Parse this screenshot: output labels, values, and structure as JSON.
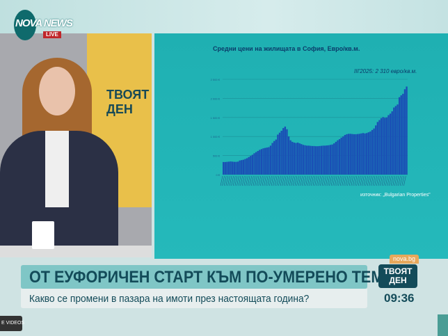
{
  "broadcast": {
    "channel_logo": "NOVA NEWS",
    "live_badge": "LIVE",
    "studio_brand": "ТВОЯТ ДЕН",
    "mug_logo": "NOVA NEWS"
  },
  "ticker": {
    "headline": "ОТ ЕУФОРИЧЕН СТАРТ КЪМ ПО-УМЕРЕНО ТЕМПО",
    "subheadline": "Какво се промени в пазара на имоти през настоящата година?",
    "site": "nova.bg",
    "show_logo": "ТВОЯТ ДЕН",
    "time": "09:36",
    "more_videos": "E VIDEOS"
  },
  "colors": {
    "panel": "#22b4b6",
    "bars": "#1a4fb5",
    "headline_text": "#134b59",
    "live": "#c0262a"
  },
  "chart_data": {
    "type": "bar",
    "title": "Средни цени на жилищата в София, Евро/кв.м.",
    "annotation": "III'2025: 2 310 евро/кв.м.",
    "source": "източник: „Bulgarian Properties\"",
    "yticks": [
      "0 €",
      "500 €",
      "1 000 €",
      "1 500 €",
      "2 000 €",
      "2 500 €"
    ],
    "ylim": [
      0,
      2500
    ],
    "grid": true,
    "values": [
      330,
      330,
      335,
      340,
      345,
      340,
      335,
      335,
      340,
      370,
      380,
      390,
      410,
      430,
      460,
      490,
      520,
      560,
      590,
      620,
      650,
      670,
      690,
      700,
      710,
      720,
      760,
      830,
      880,
      920,
      1050,
      1100,
      1150,
      1220,
      1260,
      1190,
      1000,
      900,
      860,
      840,
      830,
      840,
      820,
      800,
      780,
      770,
      760,
      760,
      755,
      750,
      750,
      745,
      745,
      750,
      755,
      760,
      760,
      765,
      770,
      780,
      790,
      820,
      860,
      900,
      930,
      970,
      1000,
      1040,
      1060,
      1070,
      1070,
      1065,
      1060,
      1060,
      1065,
      1070,
      1080,
      1090,
      1080,
      1090,
      1110,
      1130,
      1170,
      1210,
      1290,
      1380,
      1430,
      1480,
      1510,
      1490,
      1500,
      1560,
      1600,
      1660,
      1760,
      1800,
      1840,
      2030,
      2080,
      2120,
      2240,
      2310
    ]
  }
}
